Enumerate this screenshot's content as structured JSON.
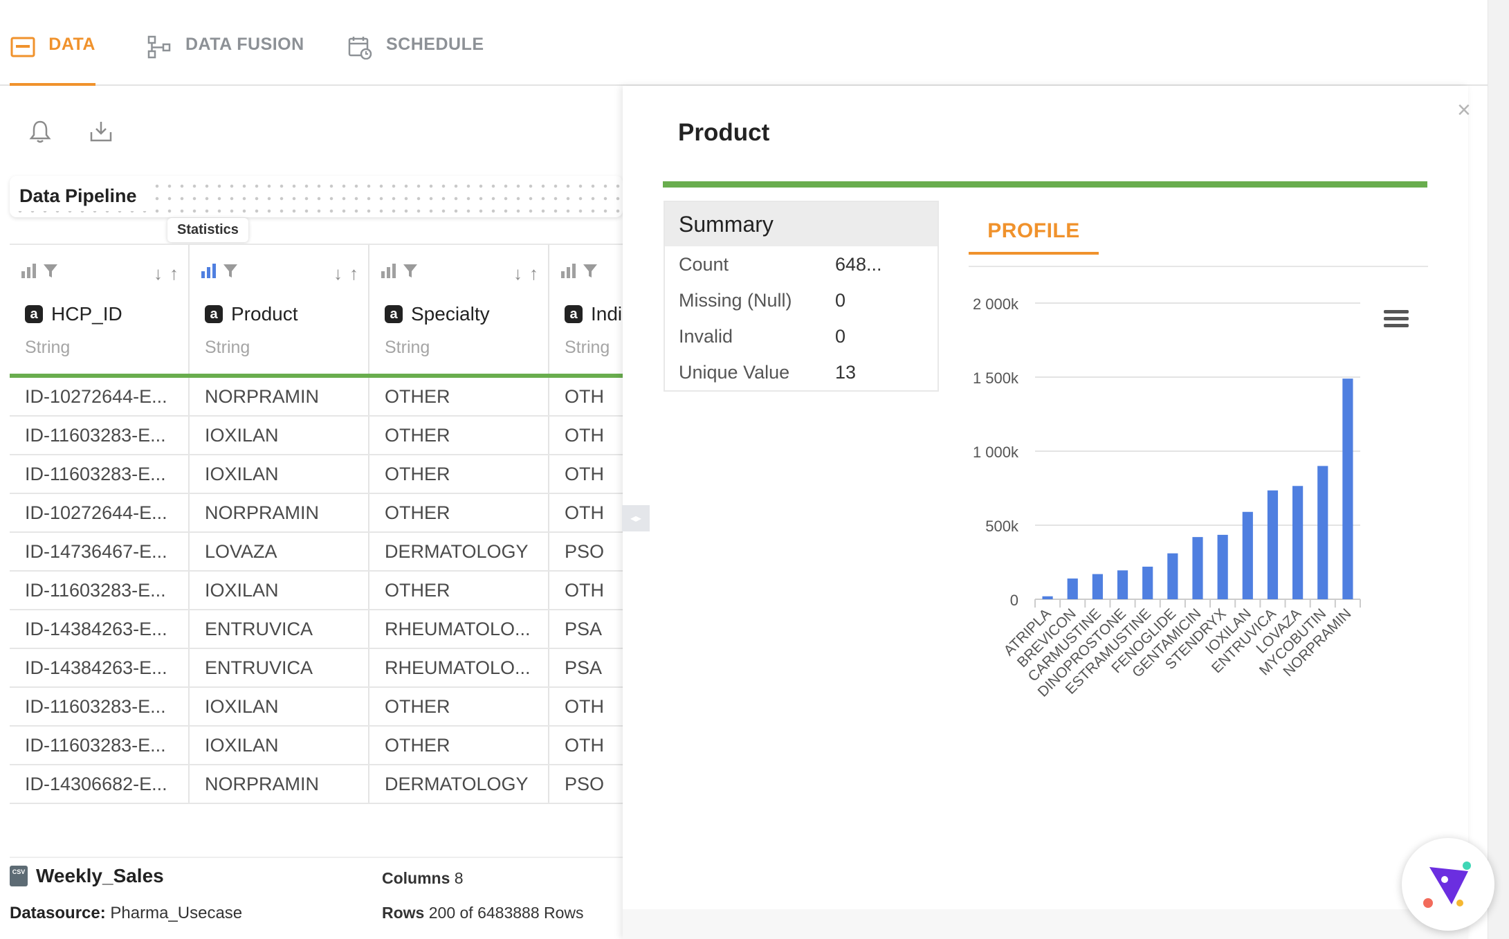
{
  "tabs": [
    {
      "label": "DATA",
      "icon": "data-table-icon",
      "active": true
    },
    {
      "label": "DATA FUSION",
      "icon": "flow-icon",
      "active": false
    },
    {
      "label": "SCHEDULE",
      "icon": "calendar-clock-icon",
      "active": false
    }
  ],
  "toolbar": {
    "bell_icon": "bell-icon",
    "download_icon": "download-icon"
  },
  "pipeline": {
    "label": "Data Pipeline",
    "tooltip": "Statistics"
  },
  "table": {
    "columns": [
      {
        "name": "HCP_ID",
        "type": "String"
      },
      {
        "name": "Product",
        "type": "String"
      },
      {
        "name": "Specialty",
        "type": "String"
      },
      {
        "name": "Indi",
        "type": "String"
      }
    ],
    "rows": [
      [
        "ID-10272644-E...",
        "NORPRAMIN",
        "OTHER",
        "OTH"
      ],
      [
        "ID-11603283-E...",
        "IOXILAN",
        "OTHER",
        "OTH"
      ],
      [
        "ID-11603283-E...",
        "IOXILAN",
        "OTHER",
        "OTH"
      ],
      [
        "ID-10272644-E...",
        "NORPRAMIN",
        "OTHER",
        "OTH"
      ],
      [
        "ID-14736467-E...",
        "LOVAZA",
        "DERMATOLOGY",
        "PSO"
      ],
      [
        "ID-11603283-E...",
        "IOXILAN",
        "OTHER",
        "OTH"
      ],
      [
        "ID-14384263-E...",
        "ENTRUVICA",
        "RHEUMATOLO...",
        "PSA"
      ],
      [
        "ID-14384263-E...",
        "ENTRUVICA",
        "RHEUMATOLO...",
        "PSA"
      ],
      [
        "ID-11603283-E...",
        "IOXILAN",
        "OTHER",
        "OTH"
      ],
      [
        "ID-11603283-E...",
        "IOXILAN",
        "OTHER",
        "OTH"
      ],
      [
        "ID-14306682-E...",
        "NORPRAMIN",
        "DERMATOLOGY",
        "PSO"
      ]
    ]
  },
  "footer": {
    "dataset_name": "Weekly_Sales",
    "csv_badge": "CSV",
    "datasource_label": "Datasource:",
    "datasource_value": "Pharma_Usecase",
    "columns_label": "Columns",
    "columns_value": "8",
    "rows_label": "Rows",
    "rows_value": "200",
    "rows_of": "of",
    "rows_total": "6483888",
    "rows_suffix": "Rows"
  },
  "panel": {
    "title": "Product",
    "close": "×",
    "summary": {
      "heading": "Summary",
      "items": [
        {
          "label": "Count",
          "value": "648..."
        },
        {
          "label": "Missing (Null)",
          "value": "0"
        },
        {
          "label": "Invalid",
          "value": "0"
        },
        {
          "label": "Unique Value",
          "value": "13"
        }
      ]
    },
    "profile_tab": "PROFILE"
  },
  "colors": {
    "accent": "#f0922c",
    "green": "#69ad4e",
    "bar": "#4f7fe0"
  },
  "chart_data": {
    "type": "bar",
    "title": "",
    "xlabel": "",
    "ylabel": "",
    "categories": [
      "ATRIPLA",
      "BREVICON",
      "CARMUSTINE",
      "DINOPROSTONE",
      "ESTRAMUSTINE",
      "FENOGLIDE",
      "GENTAMICIN",
      "STENDRYX",
      "IOXILAN",
      "ENTRUVICA",
      "LOVAZA",
      "MYCOBUTIN",
      "NORPRAMIN"
    ],
    "values": [
      20000,
      140000,
      170000,
      195000,
      220000,
      310000,
      420000,
      435000,
      590000,
      735000,
      765000,
      900000,
      1490000
    ],
    "ylim": [
      0,
      2000000
    ],
    "yticks": [
      0,
      500000,
      1000000,
      1500000,
      2000000
    ],
    "ytick_labels": [
      "0",
      "500k",
      "1 000k",
      "1 500k",
      "2 000k"
    ],
    "grid": true,
    "menu_icon": "hamburger-menu-icon"
  }
}
